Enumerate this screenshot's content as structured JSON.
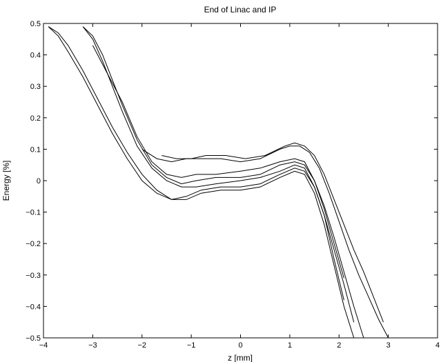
{
  "chart_data": {
    "type": "line",
    "title": "End of Linac and IP",
    "xlabel": "z [mm]",
    "ylabel": "Energy [%]",
    "xlim": [
      -4,
      4
    ],
    "ylim": [
      -0.5,
      0.5
    ],
    "xticks": [
      "−4",
      "−3",
      "−2",
      "−1",
      "0",
      "1",
      "2",
      "3",
      "4"
    ],
    "yticks": [
      "0.5",
      "0.4",
      "0.3",
      "0.2",
      "0.1",
      "0",
      "−0.1",
      "−0.2",
      "−0.3",
      "−0.4",
      "−0.5"
    ],
    "grid": false,
    "line_color": "#000000",
    "series": [
      {
        "x": [
          -3.9,
          -3.7,
          -3.5,
          -3.2,
          -2.9,
          -2.6,
          -2.3,
          -2.0,
          -1.7,
          -1.4,
          -1.1,
          -0.8,
          -0.4,
          0.0,
          0.4,
          0.8,
          1.1,
          1.3,
          1.5,
          1.7,
          1.9,
          2.1,
          2.3
        ],
        "y": [
          0.49,
          0.47,
          0.43,
          0.35,
          0.26,
          0.17,
          0.09,
          0.02,
          -0.03,
          -0.06,
          -0.06,
          -0.04,
          -0.03,
          -0.03,
          -0.02,
          0.01,
          0.03,
          0.02,
          -0.04,
          -0.14,
          -0.27,
          -0.4,
          -0.5
        ]
      },
      {
        "x": [
          -3.9,
          -3.7,
          -3.5,
          -3.2,
          -2.9,
          -2.6,
          -2.3,
          -2.0,
          -1.7,
          -1.4,
          -1.1,
          -0.8,
          -0.4,
          0.0,
          0.4,
          0.8,
          1.1,
          1.3,
          1.5,
          1.7,
          1.9,
          2.1
        ],
        "y": [
          0.49,
          0.46,
          0.41,
          0.33,
          0.24,
          0.15,
          0.07,
          0.0,
          -0.04,
          -0.06,
          -0.05,
          -0.03,
          -0.02,
          -0.02,
          -0.01,
          0.02,
          0.04,
          0.03,
          -0.02,
          -0.11,
          -0.25,
          -0.38
        ]
      },
      {
        "x": [
          -3.2,
          -3.0,
          -2.8,
          -2.6,
          -2.4,
          -2.1,
          -1.8,
          -1.5,
          -1.2,
          -0.9,
          -0.5,
          0.0,
          0.4,
          0.8,
          1.1,
          1.3,
          1.5,
          1.7,
          1.9,
          2.1,
          2.3,
          2.5
        ],
        "y": [
          0.49,
          0.46,
          0.4,
          0.32,
          0.24,
          0.13,
          0.05,
          0.01,
          -0.01,
          0.0,
          0.01,
          0.01,
          0.02,
          0.05,
          0.06,
          0.05,
          0.0,
          -0.08,
          -0.18,
          -0.29,
          -0.4,
          -0.5
        ]
      },
      {
        "x": [
          -3.2,
          -3.0,
          -2.8,
          -2.6,
          -2.4,
          -2.1,
          -1.8,
          -1.5,
          -1.2,
          -0.9,
          -0.5,
          0.0,
          0.4,
          0.8,
          1.1,
          1.3,
          1.5,
          1.7,
          1.9,
          2.1,
          2.3
        ],
        "y": [
          0.49,
          0.45,
          0.38,
          0.3,
          0.22,
          0.11,
          0.04,
          0.0,
          -0.02,
          -0.02,
          -0.01,
          0.0,
          0.01,
          0.03,
          0.05,
          0.04,
          -0.02,
          -0.11,
          -0.22,
          -0.33,
          -0.45
        ]
      },
      {
        "x": [
          -3.0,
          -2.7,
          -2.4,
          -2.1,
          -1.8,
          -1.5,
          -1.2,
          -0.9,
          -0.5,
          0.0,
          0.4,
          0.8,
          1.1,
          1.3,
          1.5,
          1.7,
          1.9,
          2.1
        ],
        "y": [
          0.43,
          0.34,
          0.25,
          0.14,
          0.06,
          0.02,
          0.01,
          0.02,
          0.02,
          0.03,
          0.04,
          0.06,
          0.07,
          0.06,
          0.0,
          -0.09,
          -0.2,
          -0.31
        ]
      },
      {
        "x": [
          -2.0,
          -1.7,
          -1.4,
          -1.1,
          -0.8,
          -0.4,
          0.0,
          0.4,
          0.8,
          1.0,
          1.2,
          1.4,
          1.6,
          1.8,
          2.0,
          2.2,
          2.4,
          2.6,
          2.8,
          3.0
        ],
        "y": [
          0.1,
          0.07,
          0.06,
          0.07,
          0.07,
          0.07,
          0.06,
          0.07,
          0.1,
          0.11,
          0.11,
          0.09,
          0.04,
          -0.04,
          -0.13,
          -0.22,
          -0.3,
          -0.37,
          -0.44,
          -0.5
        ]
      },
      {
        "x": [
          -1.6,
          -1.3,
          -1.0,
          -0.7,
          -0.3,
          0.1,
          0.5,
          0.9,
          1.1,
          1.3,
          1.5,
          1.7,
          1.9,
          2.1,
          2.3,
          2.5,
          2.7,
          2.9
        ],
        "y": [
          0.08,
          0.07,
          0.07,
          0.08,
          0.08,
          0.07,
          0.08,
          0.11,
          0.12,
          0.11,
          0.08,
          0.02,
          -0.06,
          -0.14,
          -0.22,
          -0.29,
          -0.37,
          -0.45
        ]
      }
    ]
  }
}
